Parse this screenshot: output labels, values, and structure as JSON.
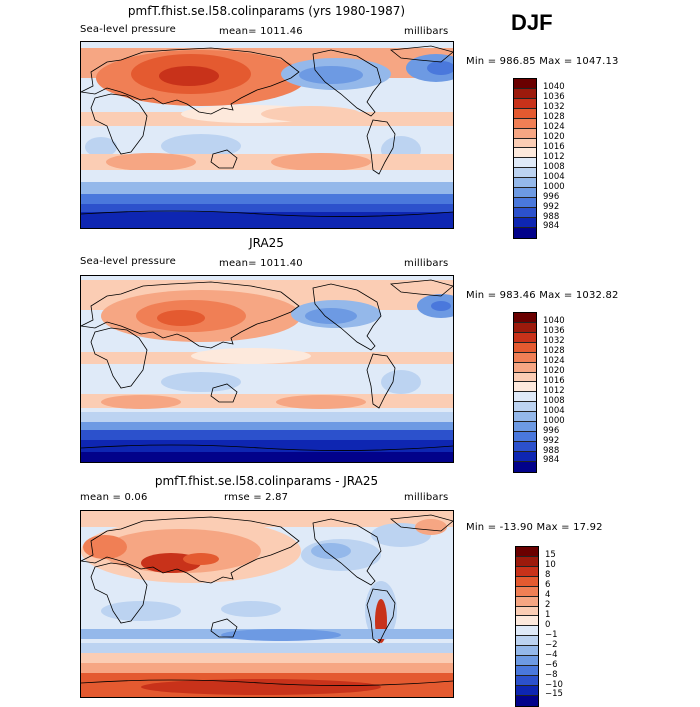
{
  "season": "DJF",
  "panels": [
    {
      "title": "pmfT.fhist.se.l58.colinparams (yrs 1980-1987)",
      "left_label": "Sea-level pressure",
      "center_label": "mean= 1011.46",
      "units": "millibars",
      "range_text": "Min = 986.85 Max = 1047.13",
      "colorbar": {
        "labels": [
          "1040",
          "1036",
          "1032",
          "1028",
          "1024",
          "1020",
          "1016",
          "1012",
          "1008",
          "1004",
          "1000",
          "996",
          "992",
          "988",
          "984"
        ],
        "colors": [
          "#6a0000",
          "#9c1a0c",
          "#c8321a",
          "#e45a30",
          "#f07f55",
          "#f6a683",
          "#fbcdb4",
          "#fde9dc",
          "#dfeaf8",
          "#bcd3f1",
          "#94b8ea",
          "#6d9ae3",
          "#4a78dc",
          "#2c51cc",
          "#0e26b2",
          "#02028a"
        ]
      }
    },
    {
      "title": "JRA25",
      "left_label": "Sea-level pressure",
      "center_label": "mean= 1011.40",
      "units": "millibars",
      "range_text": "Min = 983.46 Max = 1032.82",
      "colorbar": {
        "labels": [
          "1040",
          "1036",
          "1032",
          "1028",
          "1024",
          "1020",
          "1016",
          "1012",
          "1008",
          "1004",
          "1000",
          "996",
          "992",
          "988",
          "984"
        ],
        "colors": [
          "#6a0000",
          "#9c1a0c",
          "#c8321a",
          "#e45a30",
          "#f07f55",
          "#f6a683",
          "#fbcdb4",
          "#fde9dc",
          "#dfeaf8",
          "#bcd3f1",
          "#94b8ea",
          "#6d9ae3",
          "#4a78dc",
          "#2c51cc",
          "#0e26b2",
          "#02028a"
        ]
      }
    },
    {
      "title": "pmfT.fhist.se.l58.colinparams - JRA25",
      "left_label": "mean =    0.06",
      "center_label": "rmse =    2.87",
      "units": "millibars",
      "range_text": "Min = -13.90 Max =  17.92",
      "colorbar": {
        "labels": [
          "15",
          "10",
          "8",
          "6",
          "4",
          "2",
          "1",
          "0",
          "−1",
          "−2",
          "−4",
          "−6",
          "−8",
          "−10",
          "−15"
        ],
        "colors": [
          "#6a0000",
          "#9c1a0c",
          "#c8321a",
          "#e45a30",
          "#f07f55",
          "#f6a683",
          "#fbcdb4",
          "#fde9dc",
          "#dfeaf8",
          "#bcd3f1",
          "#94b8ea",
          "#6d9ae3",
          "#4a78dc",
          "#2c51cc",
          "#0e26b2",
          "#02028a"
        ]
      }
    }
  ]
}
